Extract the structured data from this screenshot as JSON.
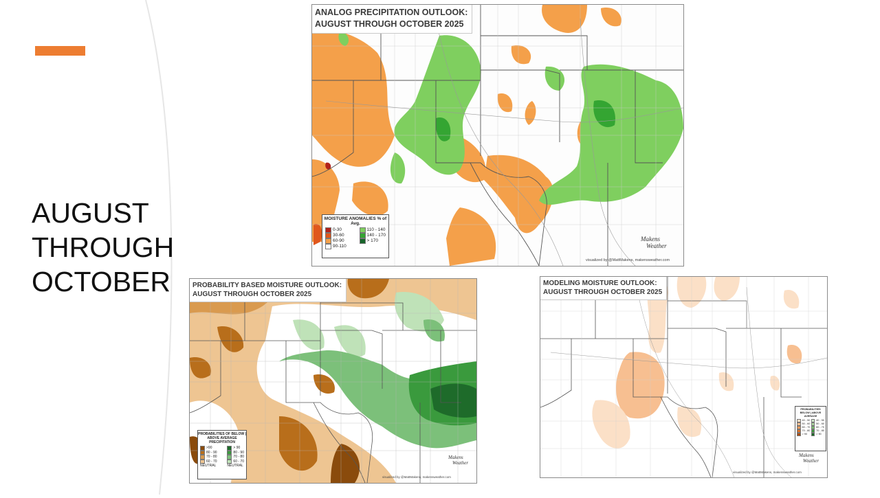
{
  "slide": {
    "heading_lines": [
      "AUGUST",
      "THROUGH",
      "OCTOBER"
    ],
    "accent_color": "#ED7D31"
  },
  "maps": [
    {
      "title_line1": "ANALOG PRECIPITATION OUTLOOK:",
      "title_line2": "AUGUST THROUGH OCTOBER 2025",
      "legend_title": "MOISTURE ANOMALIES % of Avg.",
      "legend_left": [
        {
          "label": "0-30",
          "color": "#b2221b"
        },
        {
          "label": "30-60",
          "color": "#e0571c"
        },
        {
          "label": "60-90",
          "color": "#f4a04a"
        },
        {
          "label": "90-110",
          "color": "#ffffff"
        }
      ],
      "legend_right": [
        {
          "label": "110 - 140",
          "color": "#7fcf5f"
        },
        {
          "label": "140 - 170",
          "color": "#34a532"
        },
        {
          "label": "> 170",
          "color": "#17652a"
        }
      ],
      "credit": "visualized by @MattMakens, makensweather.com"
    },
    {
      "title_line1": "PROBABILITY BASED MOISTURE OUTLOOK:",
      "title_line2": "AUGUST THROUGH OCTOBER 2025",
      "legend_title": "PROBABILITIES OF BELOW | ABOVE AVERAGE PRECIPITATION",
      "legend_left": [
        {
          "label": ">90",
          "color": "#8a4b0c"
        },
        {
          "label": "80 - 90",
          "color": "#b86e1b"
        },
        {
          "label": "70 - 80",
          "color": "#d99a4f"
        },
        {
          "label": "60 - 70",
          "color": "#eec592"
        }
      ],
      "legend_right": [
        {
          "label": "> 90",
          "color": "#1e6b2a"
        },
        {
          "label": "80 - 90",
          "color": "#3a9a3d"
        },
        {
          "label": "70 - 80",
          "color": "#7cc07a"
        },
        {
          "label": "60 - 70",
          "color": "#bfe2b8"
        }
      ],
      "neutral_label": "NEUTRAL",
      "credit": "visualized by @MattMakens, makensweather.com"
    },
    {
      "title_line1": "MODELING MOISTURE OUTLOOK:",
      "title_line2": "AUGUST THROUGH OCTOBER 2025",
      "legend_title": "PROBABILITIES BELOW | ABOVE AVERAGE",
      "legend_left": [
        {
          "label": "40 - 50",
          "color": "#fbe0c7"
        },
        {
          "label": "50 - 60",
          "color": "#f7bf91"
        },
        {
          "label": "60 - 70",
          "color": "#ef9a5b"
        },
        {
          "label": "70 - 80",
          "color": "#d9712c"
        },
        {
          "label": "> 90",
          "color": "#a84d12"
        }
      ],
      "legend_right": [
        {
          "label": "40 - 50",
          "color": "#d6eccf"
        },
        {
          "label": "50 - 60",
          "color": "#acd99e"
        },
        {
          "label": "60 - 70",
          "color": "#79c06c"
        },
        {
          "label": "70 - 80",
          "color": "#3f9a3c"
        },
        {
          "label": "> 90",
          "color": "#1c6a27"
        }
      ],
      "credit": "visualized by @MattMakens, makensweather.com"
    }
  ],
  "logo_line1": "Makens",
  "logo_line2": "Weather"
}
